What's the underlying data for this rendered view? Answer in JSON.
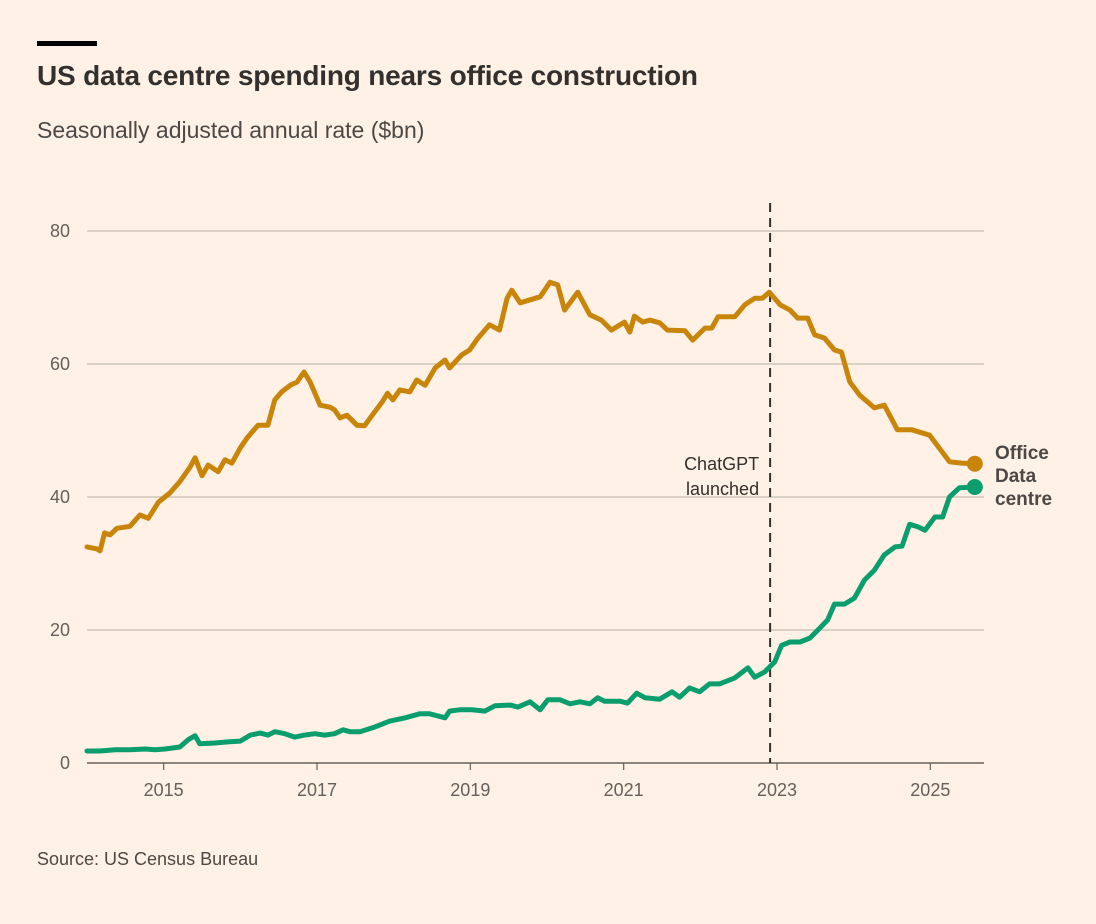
{
  "chart_data": {
    "type": "line",
    "title": "US data centre spending nears office construction",
    "subtitle": "Seasonally adjusted annual rate ($bn)",
    "source": "Source: US Census Bureau",
    "xlim": [
      2014.0,
      2025.7
    ],
    "ylim": [
      0,
      80
    ],
    "yticks": [
      0,
      20,
      40,
      60,
      80
    ],
    "xticks": [
      2015,
      2017,
      2019,
      2021,
      2023,
      2025
    ],
    "grid": true,
    "annotation": {
      "x": 2022.91,
      "lines": [
        "ChatGPT",
        "launched"
      ]
    },
    "series": [
      {
        "name": "Office",
        "label_lines": [
          "Office"
        ],
        "color": "#C98509",
        "points": [
          [
            2014.0,
            32.5
          ],
          [
            2014.13,
            32.2
          ],
          [
            2014.17,
            31.9
          ],
          [
            2014.23,
            34.6
          ],
          [
            2014.3,
            34.3
          ],
          [
            2014.39,
            35.3
          ],
          [
            2014.56,
            35.6
          ],
          [
            2014.69,
            37.3
          ],
          [
            2014.8,
            36.8
          ],
          [
            2014.93,
            39.2
          ],
          [
            2015.08,
            40.6
          ],
          [
            2015.21,
            42.3
          ],
          [
            2015.34,
            44.4
          ],
          [
            2015.41,
            45.9
          ],
          [
            2015.5,
            43.2
          ],
          [
            2015.58,
            44.8
          ],
          [
            2015.71,
            43.8
          ],
          [
            2015.8,
            45.6
          ],
          [
            2015.89,
            45.1
          ],
          [
            2016.0,
            47.4
          ],
          [
            2016.09,
            48.9
          ],
          [
            2016.23,
            50.8
          ],
          [
            2016.36,
            50.8
          ],
          [
            2016.45,
            54.6
          ],
          [
            2016.54,
            55.8
          ],
          [
            2016.65,
            56.8
          ],
          [
            2016.74,
            57.3
          ],
          [
            2016.83,
            58.8
          ],
          [
            2016.91,
            57.3
          ],
          [
            2017.04,
            53.8
          ],
          [
            2017.17,
            53.5
          ],
          [
            2017.23,
            53.1
          ],
          [
            2017.3,
            51.9
          ],
          [
            2017.39,
            52.3
          ],
          [
            2017.52,
            50.8
          ],
          [
            2017.62,
            50.7
          ],
          [
            2017.72,
            52.3
          ],
          [
            2017.85,
            54.3
          ],
          [
            2017.92,
            55.6
          ],
          [
            2017.99,
            54.6
          ],
          [
            2018.08,
            56.1
          ],
          [
            2018.21,
            55.8
          ],
          [
            2018.3,
            57.6
          ],
          [
            2018.41,
            56.8
          ],
          [
            2018.54,
            59.4
          ],
          [
            2018.67,
            60.6
          ],
          [
            2018.73,
            59.4
          ],
          [
            2018.89,
            61.4
          ],
          [
            2018.99,
            62.1
          ],
          [
            2019.1,
            63.9
          ],
          [
            2019.25,
            65.9
          ],
          [
            2019.38,
            65.1
          ],
          [
            2019.48,
            69.9
          ],
          [
            2019.54,
            71.1
          ],
          [
            2019.65,
            69.2
          ],
          [
            2019.91,
            70.1
          ],
          [
            2020.04,
            72.3
          ],
          [
            2020.14,
            71.9
          ],
          [
            2020.23,
            68.1
          ],
          [
            2020.4,
            70.8
          ],
          [
            2020.56,
            67.4
          ],
          [
            2020.71,
            66.6
          ],
          [
            2020.84,
            65.1
          ],
          [
            2021.01,
            66.3
          ],
          [
            2021.08,
            64.8
          ],
          [
            2021.14,
            67.2
          ],
          [
            2021.25,
            66.3
          ],
          [
            2021.34,
            66.6
          ],
          [
            2021.47,
            66.2
          ],
          [
            2021.57,
            65.1
          ],
          [
            2021.8,
            65.0
          ],
          [
            2021.9,
            63.6
          ],
          [
            2022.06,
            65.4
          ],
          [
            2022.15,
            65.4
          ],
          [
            2022.23,
            67.1
          ],
          [
            2022.45,
            67.1
          ],
          [
            2022.58,
            68.9
          ],
          [
            2022.71,
            69.9
          ],
          [
            2022.81,
            69.9
          ],
          [
            2022.9,
            70.8
          ],
          [
            2023.04,
            68.9
          ],
          [
            2023.17,
            68.1
          ],
          [
            2023.27,
            66.9
          ],
          [
            2023.4,
            66.9
          ],
          [
            2023.49,
            64.4
          ],
          [
            2023.62,
            63.9
          ],
          [
            2023.75,
            62.1
          ],
          [
            2023.84,
            61.8
          ],
          [
            2023.95,
            57.3
          ],
          [
            2024.08,
            55.3
          ],
          [
            2024.18,
            54.3
          ],
          [
            2024.27,
            53.4
          ],
          [
            2024.4,
            53.8
          ],
          [
            2024.57,
            50.1
          ],
          [
            2024.76,
            50.1
          ],
          [
            2024.99,
            49.3
          ],
          [
            2025.25,
            45.3
          ],
          [
            2025.41,
            45.1
          ],
          [
            2025.58,
            45.0
          ]
        ]
      },
      {
        "name": "Data centre",
        "label_lines": [
          "Data",
          "centre"
        ],
        "color": "#0A9E6E",
        "points": [
          [
            2014.0,
            1.8
          ],
          [
            2014.17,
            1.8
          ],
          [
            2014.37,
            2.0
          ],
          [
            2014.56,
            2.0
          ],
          [
            2014.76,
            2.1
          ],
          [
            2014.89,
            2.0
          ],
          [
            2015.02,
            2.1
          ],
          [
            2015.21,
            2.4
          ],
          [
            2015.32,
            3.5
          ],
          [
            2015.41,
            4.1
          ],
          [
            2015.47,
            2.9
          ],
          [
            2015.67,
            3.0
          ],
          [
            2015.86,
            3.2
          ],
          [
            2016.0,
            3.3
          ],
          [
            2016.13,
            4.2
          ],
          [
            2016.26,
            4.5
          ],
          [
            2016.36,
            4.2
          ],
          [
            2016.45,
            4.7
          ],
          [
            2016.58,
            4.4
          ],
          [
            2016.71,
            3.9
          ],
          [
            2016.84,
            4.2
          ],
          [
            2016.97,
            4.4
          ],
          [
            2017.1,
            4.2
          ],
          [
            2017.23,
            4.4
          ],
          [
            2017.34,
            5.0
          ],
          [
            2017.43,
            4.7
          ],
          [
            2017.56,
            4.7
          ],
          [
            2017.75,
            5.4
          ],
          [
            2017.95,
            6.3
          ],
          [
            2018.15,
            6.8
          ],
          [
            2018.34,
            7.4
          ],
          [
            2018.47,
            7.4
          ],
          [
            2018.67,
            6.8
          ],
          [
            2018.73,
            7.8
          ],
          [
            2018.86,
            8.0
          ],
          [
            2019.02,
            8.0
          ],
          [
            2019.19,
            7.8
          ],
          [
            2019.32,
            8.6
          ],
          [
            2019.52,
            8.7
          ],
          [
            2019.62,
            8.4
          ],
          [
            2019.78,
            9.2
          ],
          [
            2019.91,
            8.0
          ],
          [
            2020.01,
            9.5
          ],
          [
            2020.17,
            9.5
          ],
          [
            2020.3,
            8.9
          ],
          [
            2020.43,
            9.2
          ],
          [
            2020.56,
            8.9
          ],
          [
            2020.66,
            9.8
          ],
          [
            2020.75,
            9.3
          ],
          [
            2020.95,
            9.3
          ],
          [
            2021.05,
            9.0
          ],
          [
            2021.17,
            10.5
          ],
          [
            2021.28,
            9.8
          ],
          [
            2021.47,
            9.6
          ],
          [
            2021.63,
            10.7
          ],
          [
            2021.73,
            9.9
          ],
          [
            2021.86,
            11.3
          ],
          [
            2021.99,
            10.7
          ],
          [
            2022.12,
            11.9
          ],
          [
            2022.25,
            11.9
          ],
          [
            2022.45,
            12.8
          ],
          [
            2022.62,
            14.3
          ],
          [
            2022.71,
            12.9
          ],
          [
            2022.84,
            13.7
          ],
          [
            2022.97,
            15.2
          ],
          [
            2023.06,
            17.7
          ],
          [
            2023.17,
            18.2
          ],
          [
            2023.3,
            18.2
          ],
          [
            2023.43,
            18.8
          ],
          [
            2023.56,
            20.3
          ],
          [
            2023.66,
            21.5
          ],
          [
            2023.75,
            23.9
          ],
          [
            2023.88,
            23.9
          ],
          [
            2024.01,
            24.8
          ],
          [
            2024.14,
            27.5
          ],
          [
            2024.27,
            29.0
          ],
          [
            2024.4,
            31.3
          ],
          [
            2024.54,
            32.5
          ],
          [
            2024.63,
            32.6
          ],
          [
            2024.73,
            35.9
          ],
          [
            2024.84,
            35.5
          ],
          [
            2024.93,
            35.0
          ],
          [
            2025.06,
            37.0
          ],
          [
            2025.16,
            37.0
          ],
          [
            2025.25,
            40.0
          ],
          [
            2025.38,
            41.4
          ],
          [
            2025.58,
            41.5
          ]
        ]
      }
    ]
  }
}
